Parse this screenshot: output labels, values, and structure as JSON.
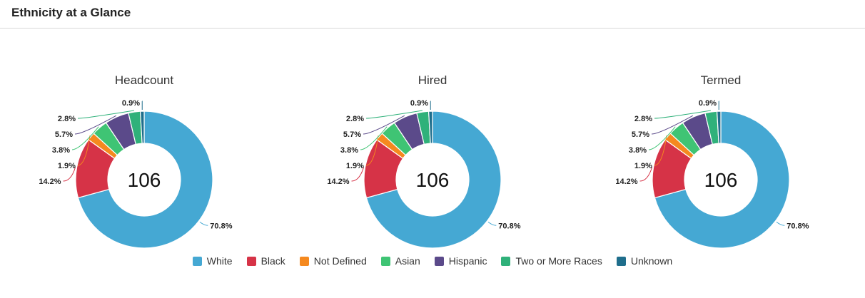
{
  "panel": {
    "title": "Ethnicity at a Glance"
  },
  "legend": [
    {
      "label": "White",
      "color": "#45a8d3"
    },
    {
      "label": "Black",
      "color": "#d63347"
    },
    {
      "label": "Not Defined",
      "color": "#f5891f"
    },
    {
      "label": "Asian",
      "color": "#3fc474"
    },
    {
      "label": "Hispanic",
      "color": "#5b4a8a"
    },
    {
      "label": "Two or More Races",
      "color": "#2fb17a"
    },
    {
      "label": "Unknown",
      "color": "#1f6e8c"
    }
  ],
  "chart_data": [
    {
      "type": "pie",
      "title": "Headcount",
      "center_value": "106",
      "categories": [
        "White",
        "Black",
        "Not Defined",
        "Asian",
        "Hispanic",
        "Two or More Races",
        "Unknown"
      ],
      "values": [
        70.8,
        14.2,
        1.9,
        3.8,
        5.7,
        2.8,
        0.9
      ],
      "labels": [
        "70.8%",
        "14.2%",
        "1.9%",
        "3.8%",
        "5.7%",
        "2.8%",
        "0.9%"
      ]
    },
    {
      "type": "pie",
      "title": "Hired",
      "center_value": "106",
      "categories": [
        "White",
        "Black",
        "Not Defined",
        "Asian",
        "Hispanic",
        "Two or More Races",
        "Unknown"
      ],
      "values": [
        70.8,
        14.2,
        1.9,
        3.8,
        5.7,
        2.8,
        0.9
      ],
      "labels": [
        "70.8%",
        "14.2%",
        "1.9%",
        "3.8%",
        "5.7%",
        "2.8%",
        "0.9%"
      ]
    },
    {
      "type": "pie",
      "title": "Termed",
      "center_value": "106",
      "categories": [
        "White",
        "Black",
        "Not Defined",
        "Asian",
        "Hispanic",
        "Two or More Races",
        "Unknown"
      ],
      "values": [
        70.8,
        14.2,
        1.9,
        3.8,
        5.7,
        2.8,
        0.9
      ],
      "labels": [
        "70.8%",
        "14.2%",
        "1.9%",
        "3.8%",
        "5.7%",
        "2.8%",
        "0.9%"
      ]
    }
  ]
}
